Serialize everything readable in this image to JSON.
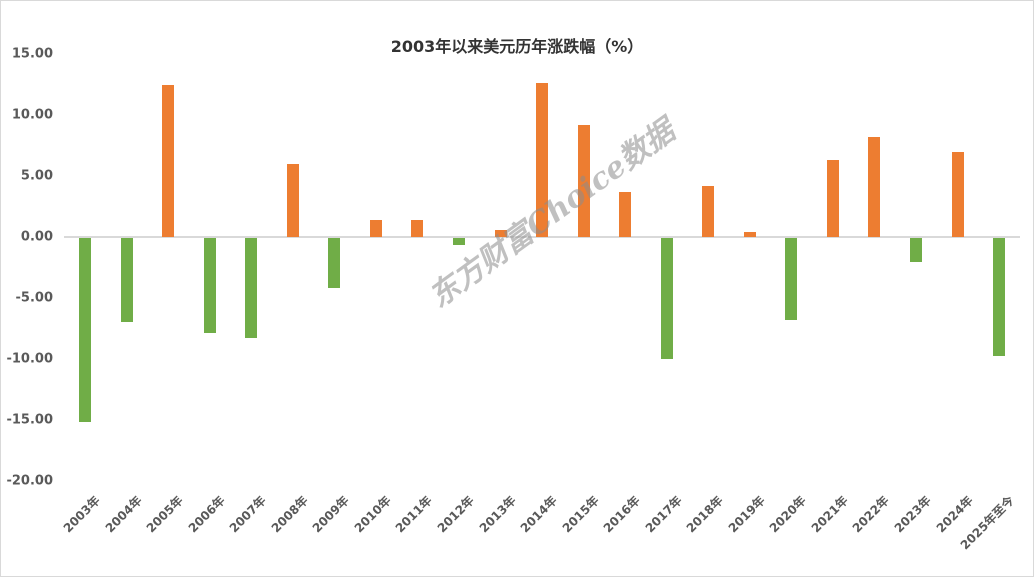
{
  "chart_data": {
    "type": "bar",
    "title": "2003年以来美元历年涨跌幅（%）",
    "xlabel": "",
    "ylabel": "",
    "ylim": [
      -20,
      15
    ],
    "yticks": [
      "15.00",
      "10.00",
      "5.00",
      "0.00",
      "-5.00",
      "-10.00",
      "-15.00",
      "-20.00"
    ],
    "grid": false,
    "legend": null,
    "colors": {
      "positive": "#ED7D31",
      "negative": "#70AD47"
    },
    "categories": [
      "2003年",
      "2004年",
      "2005年",
      "2006年",
      "2007年",
      "2008年",
      "2009年",
      "2010年",
      "2011年",
      "2012年",
      "2013年",
      "2014年",
      "2015年",
      "2016年",
      "2017年",
      "2018年",
      "2019年",
      "2020年",
      "2021年",
      "2022年",
      "2023年",
      "2024年",
      "2025年至今"
    ],
    "values": [
      -15.1,
      -6.9,
      12.5,
      -7.8,
      -8.2,
      6.0,
      -4.1,
      1.4,
      1.4,
      -0.6,
      0.6,
      12.6,
      9.2,
      3.7,
      -9.9,
      4.2,
      0.4,
      -6.7,
      6.3,
      8.2,
      -2.0,
      7.0,
      -9.7
    ]
  },
  "watermark": "东方财富Choice数据"
}
